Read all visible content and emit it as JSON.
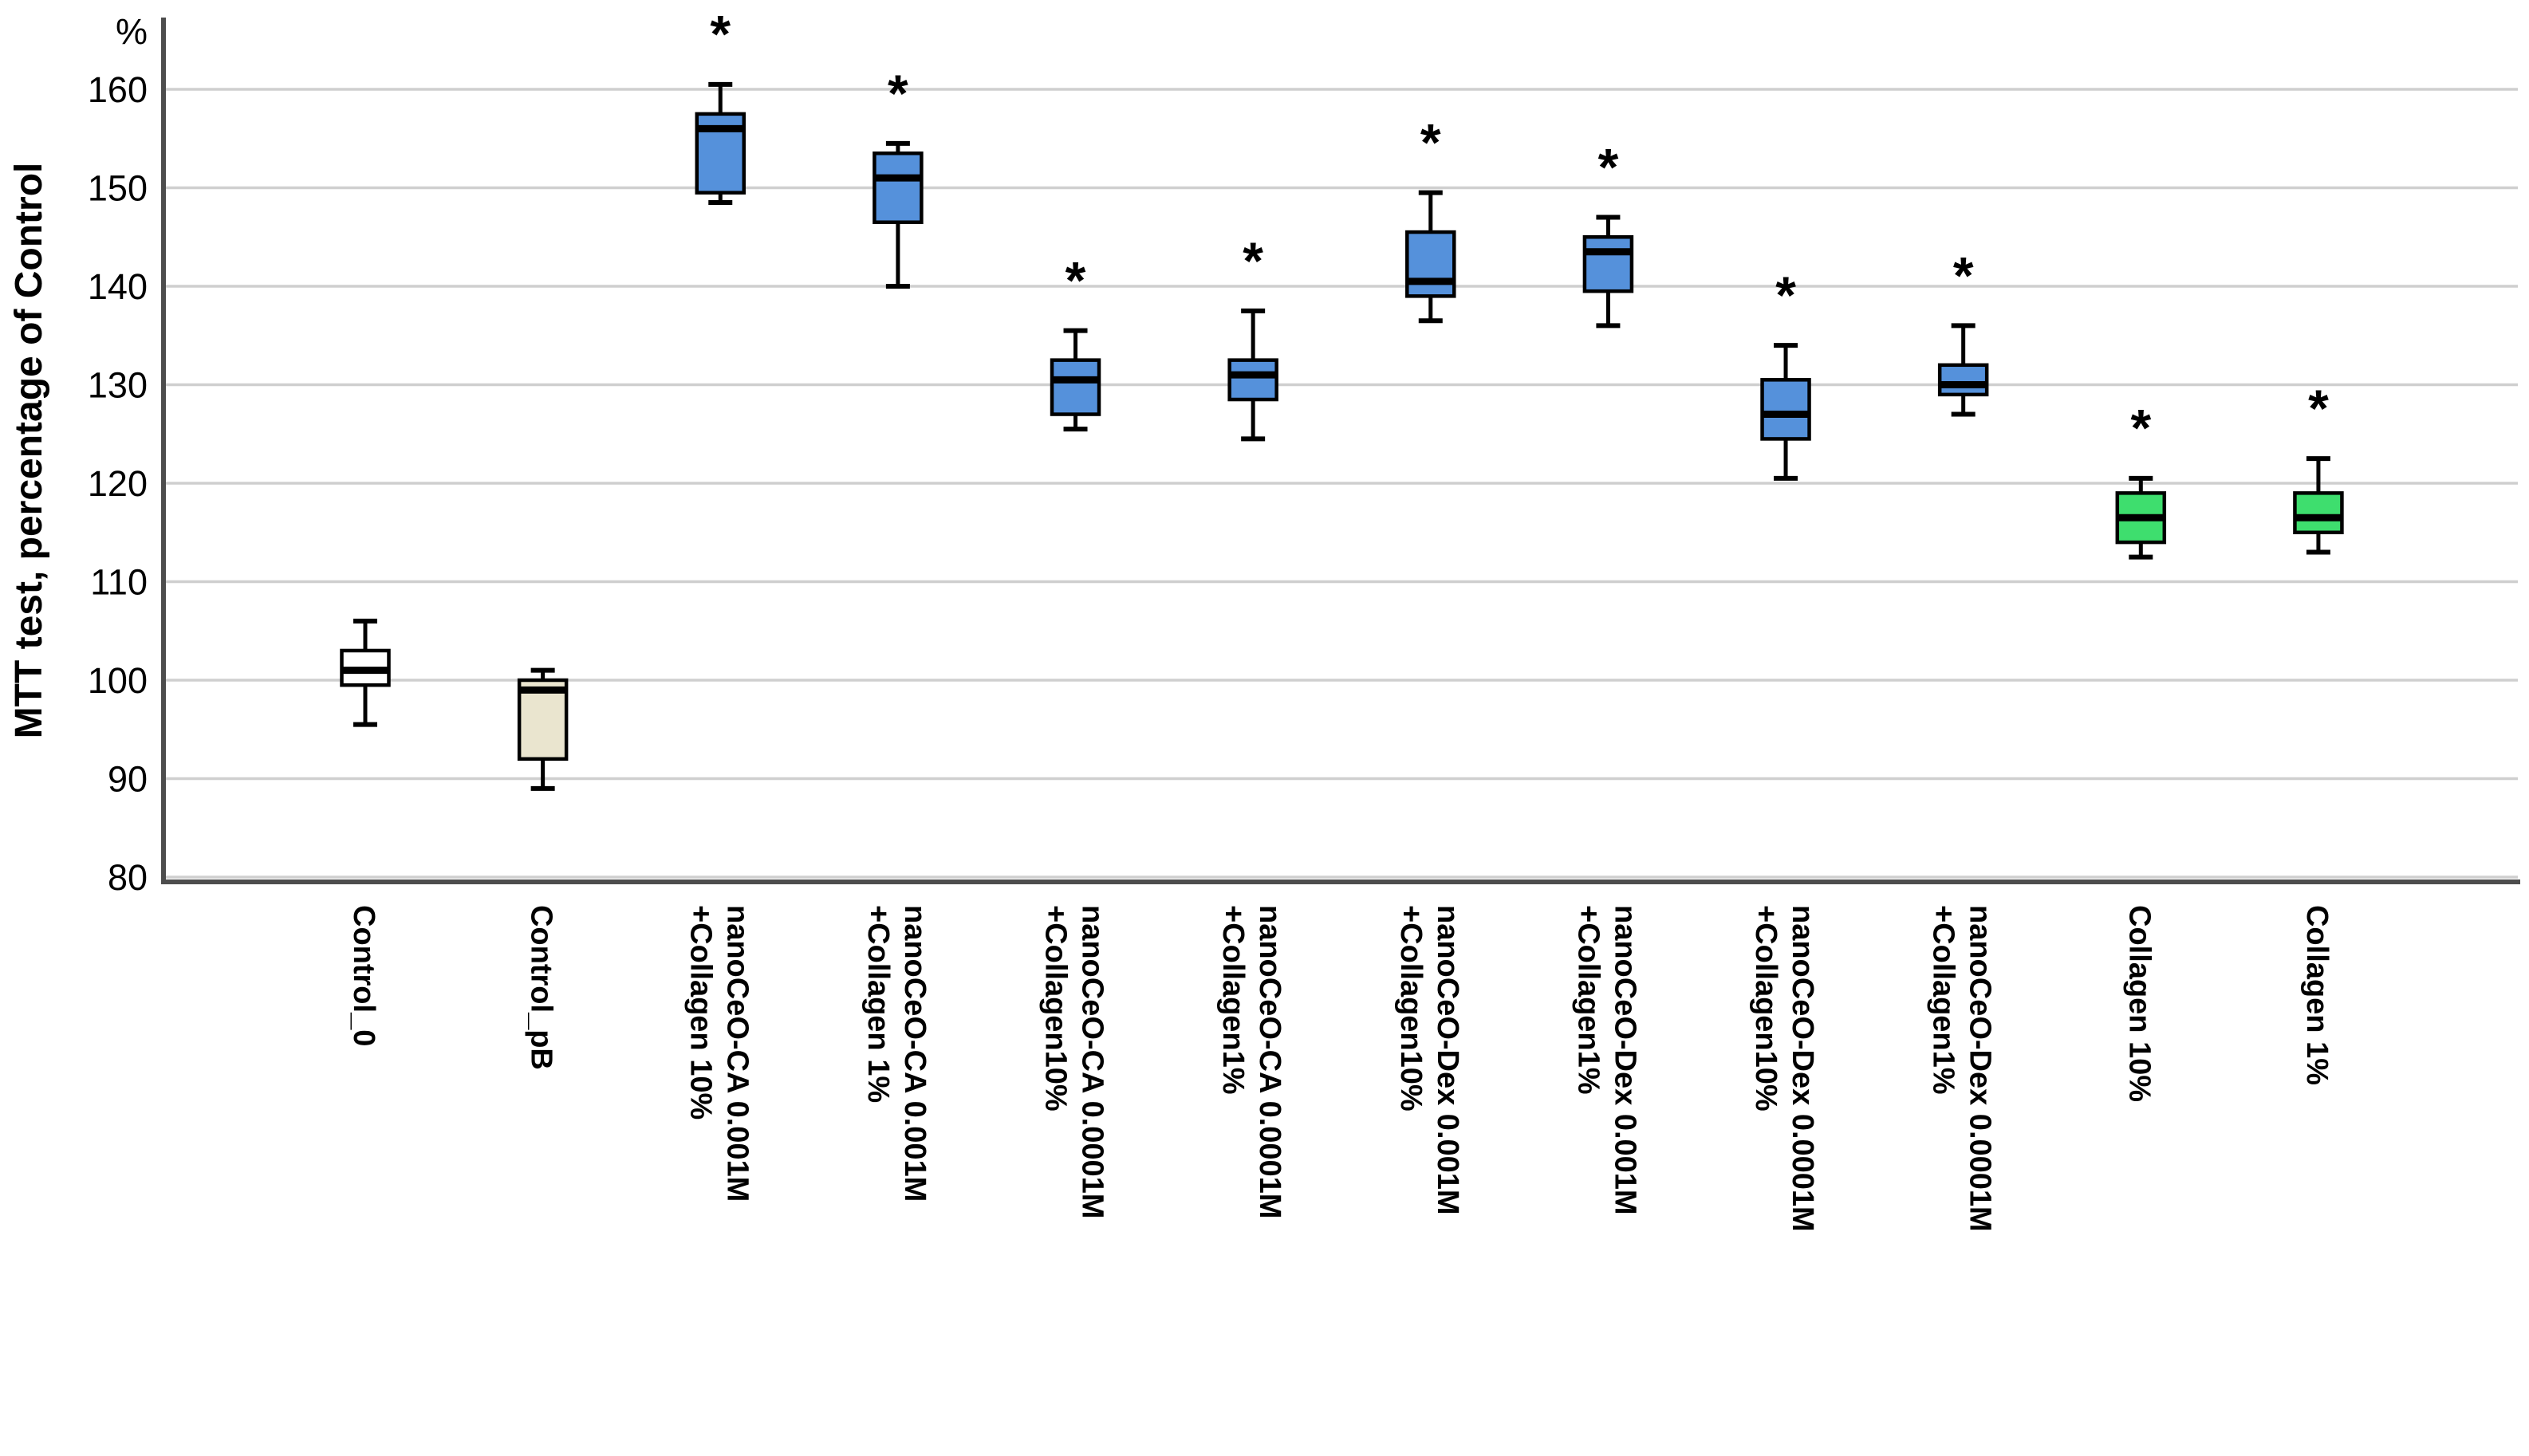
{
  "chart_data": {
    "type": "box",
    "title": "",
    "ylabel": "MTT test, percentage of Control",
    "y_unit_label": "%",
    "ylim": [
      77,
      166
    ],
    "yticks": [
      80,
      90,
      100,
      110,
      120,
      130,
      140,
      150,
      160
    ],
    "grid": "horizontal",
    "legend": "none",
    "significance_marker": "*",
    "colors": {
      "control_fill": "#ffffff",
      "control_pb_fill": "#eae5cf",
      "nanoceo_fill": "#5591db",
      "collagen_fill": "#3ede6e",
      "box_stroke": "#000000",
      "gridline": "#cfcfcf",
      "axis_line": "#4d4d4d",
      "text": "#000000"
    },
    "boxes": [
      {
        "label_lines": [
          "Control_0"
        ],
        "min": 95.5,
        "q1": 99.5,
        "median": 101,
        "q3": 103,
        "max": 106,
        "fill": "#ffffff",
        "significant": false
      },
      {
        "label_lines": [
          "Control_pB"
        ],
        "min": 89,
        "q1": 92,
        "median": 99,
        "q3": 100,
        "max": 101,
        "fill": "#eae5cf",
        "significant": false
      },
      {
        "label_lines": [
          "nanoCeO-CA 0.001M",
          "+Collagen 10%"
        ],
        "min": 148.5,
        "q1": 149.5,
        "median": 156,
        "q3": 157.5,
        "max": 160.5,
        "fill": "#5591db",
        "significant": true
      },
      {
        "label_lines": [
          "nanoCeO-CA 0.001M",
          "+Collagen 1%"
        ],
        "min": 140,
        "q1": 146.5,
        "median": 151,
        "q3": 153.5,
        "max": 154.5,
        "fill": "#5591db",
        "significant": true
      },
      {
        "label_lines": [
          "nanoCeO-CA 0.0001M",
          "+Collagen10%"
        ],
        "min": 125.5,
        "q1": 127,
        "median": 130.5,
        "q3": 132.5,
        "max": 135.5,
        "fill": "#5591db",
        "significant": true
      },
      {
        "label_lines": [
          "nanoCeO-CA 0.0001M",
          "+Collagen1%"
        ],
        "min": 124.5,
        "q1": 128.5,
        "median": 131,
        "q3": 132.5,
        "max": 137.5,
        "fill": "#5591db",
        "significant": true
      },
      {
        "label_lines": [
          "nanoCeO-Dex 0.001M",
          "+Collagen10%"
        ],
        "min": 136.5,
        "q1": 139,
        "median": 140.5,
        "q3": 145.5,
        "max": 149.5,
        "fill": "#5591db",
        "significant": true
      },
      {
        "label_lines": [
          "nanoCeO-Dex 0.001M",
          "+Collagen1%"
        ],
        "min": 136,
        "q1": 139.5,
        "median": 143.5,
        "q3": 145,
        "max": 147,
        "fill": "#5591db",
        "significant": true
      },
      {
        "label_lines": [
          "nanoCeO-Dex 0.0001M",
          "+Collagen10%"
        ],
        "min": 120.5,
        "q1": 124.5,
        "median": 127,
        "q3": 130.5,
        "max": 134,
        "fill": "#5591db",
        "significant": true
      },
      {
        "label_lines": [
          "nanoCeO-Dex 0.0001M",
          "+Collagen1%"
        ],
        "min": 127,
        "q1": 129,
        "median": 130,
        "q3": 132,
        "max": 136,
        "fill": "#5591db",
        "significant": true
      },
      {
        "label_lines": [
          "Collagen 10%"
        ],
        "min": 112.5,
        "q1": 114,
        "median": 116.5,
        "q3": 119,
        "max": 120.5,
        "fill": "#3ede6e",
        "significant": true
      },
      {
        "label_lines": [
          "Collagen 1%"
        ],
        "min": 113,
        "q1": 115,
        "median": 116.5,
        "q3": 119,
        "max": 122.5,
        "fill": "#3ede6e",
        "significant": true
      }
    ]
  }
}
